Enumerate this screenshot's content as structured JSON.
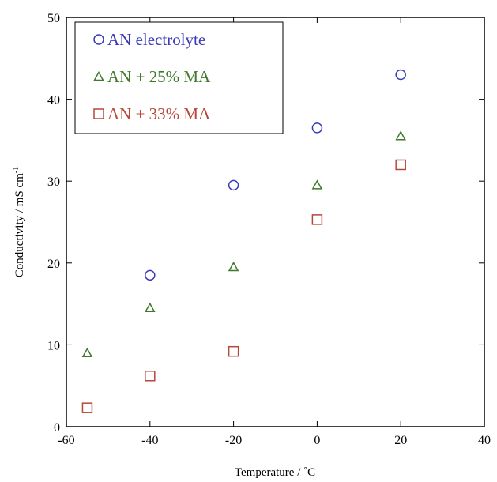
{
  "chart_data": {
    "type": "scatter",
    "xlabel": "Temperature / ˚C",
    "ylabel": "Conductivity / mS cm",
    "ylabel_sup": "-1",
    "xlim": [
      -60,
      40
    ],
    "ylim": [
      0,
      50
    ],
    "xticks": [
      -60,
      -40,
      -20,
      0,
      20,
      40
    ],
    "yticks": [
      0,
      10,
      20,
      30,
      40,
      50
    ],
    "grid": false,
    "legend_position": "top-left",
    "series": [
      {
        "name": "AN electrolyte",
        "marker": "circle",
        "color": "#3a3ab8",
        "x": [
          -40,
          -20,
          0,
          20
        ],
        "y": [
          18.5,
          29.5,
          36.5,
          43
        ]
      },
      {
        "name": "AN + 25% MA",
        "marker": "triangle",
        "color": "#3e7a2a",
        "x": [
          -55,
          -40,
          -20,
          0,
          20
        ],
        "y": [
          9,
          14.5,
          19.5,
          29.5,
          35.5
        ]
      },
      {
        "name": "AN + 33% MA",
        "marker": "square",
        "color": "#b5483a",
        "x": [
          -55,
          -40,
          -20,
          0,
          20
        ],
        "y": [
          2.3,
          6.2,
          9.2,
          25.3,
          32
        ]
      }
    ]
  }
}
